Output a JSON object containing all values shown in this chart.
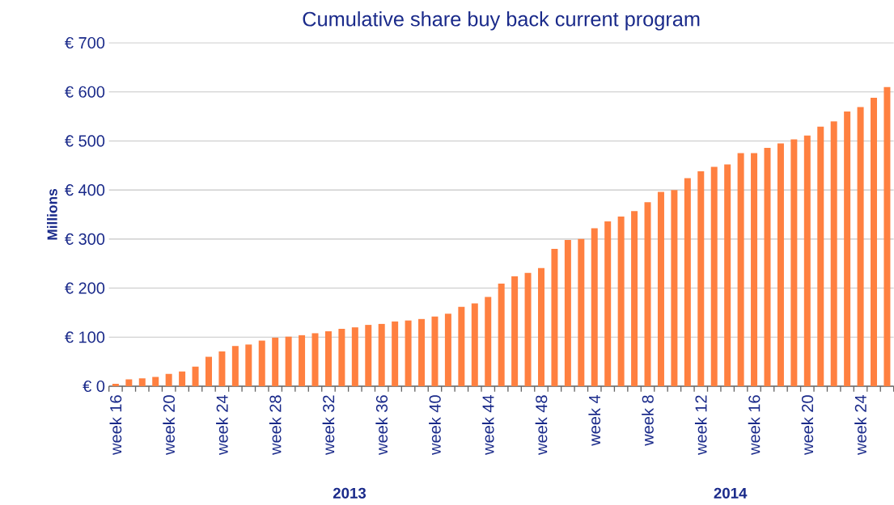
{
  "chart_data": {
    "type": "bar",
    "title": "Cumulative share buy back current program",
    "ylabel": "Millions",
    "categories": [
      "week 16",
      null,
      null,
      null,
      "week 20",
      null,
      null,
      null,
      "week 24",
      null,
      null,
      null,
      "week 28",
      null,
      null,
      null,
      "week 32",
      null,
      null,
      null,
      "week 36",
      null,
      null,
      null,
      "week 40",
      null,
      null,
      null,
      "week 44",
      null,
      null,
      null,
      "week 48",
      null,
      null,
      null,
      "week 4",
      null,
      null,
      null,
      "week 8",
      null,
      null,
      null,
      "week 12",
      null,
      null,
      null,
      "week 16",
      null,
      null,
      null,
      "week 20",
      null,
      null,
      null,
      "week 24",
      null,
      null
    ],
    "values": [
      5,
      14,
      16,
      19,
      25,
      30,
      40,
      60,
      71,
      82,
      85,
      93,
      99,
      101,
      104,
      108,
      112,
      117,
      120,
      125,
      127,
      132,
      134,
      137,
      142,
      148,
      162,
      169,
      182,
      209,
      224,
      231,
      241,
      280,
      298,
      300,
      322,
      336,
      346,
      357,
      375,
      396,
      400,
      424,
      438,
      447,
      452,
      475,
      475,
      486,
      495,
      503,
      511,
      529,
      540,
      560,
      569,
      588,
      610
    ],
    "color": "#ff8040",
    "ylim": [
      0,
      700
    ],
    "yticks": [
      {
        "value": 0,
        "label": "€ 0"
      },
      {
        "value": 100,
        "label": "€ 100"
      },
      {
        "value": 200,
        "label": "€ 200"
      },
      {
        "value": 300,
        "label": "€ 300"
      },
      {
        "value": 400,
        "label": "€ 400"
      },
      {
        "value": 500,
        "label": "€ 500"
      },
      {
        "value": 600,
        "label": "€ 600"
      },
      {
        "value": 700,
        "label": "€ 700"
      }
    ],
    "grid": "y",
    "annotations": [
      "2013",
      "2014"
    ]
  }
}
